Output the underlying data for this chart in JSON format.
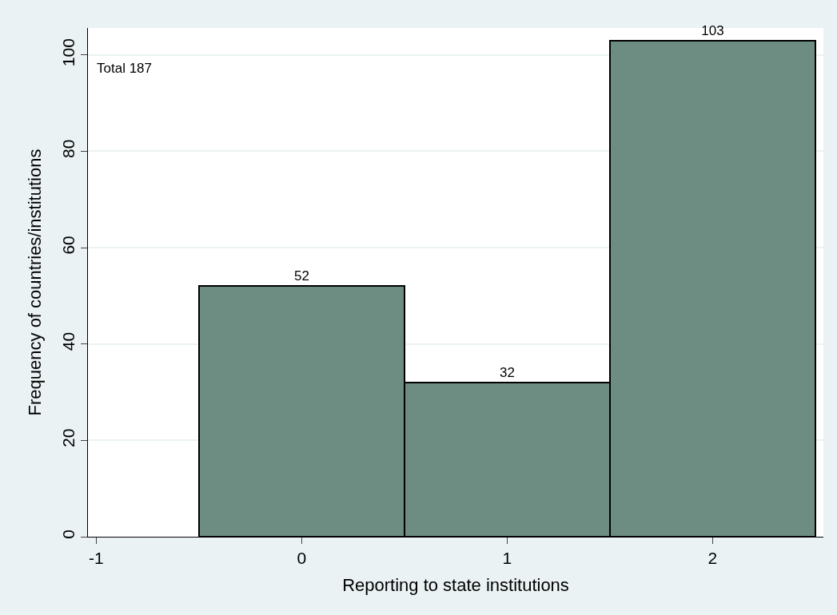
{
  "chart_data": {
    "type": "histogram",
    "xlabel": "Reporting to state institutions",
    "ylabel": "Frequency of countries/institutions",
    "annotations": [
      "Total 187"
    ],
    "bins": [
      -0.5,
      0.5,
      1.5,
      2.5
    ],
    "values": [
      52,
      32,
      103
    ],
    "color": "#6e8d82",
    "data_labels": true,
    "xlim": [
      -1.04,
      2.54
    ],
    "xticks": [
      -1,
      0,
      1,
      2
    ],
    "ylim": [
      0,
      105.6
    ],
    "yticks": [
      0,
      20,
      40,
      60,
      80,
      100
    ],
    "grid": "y"
  }
}
